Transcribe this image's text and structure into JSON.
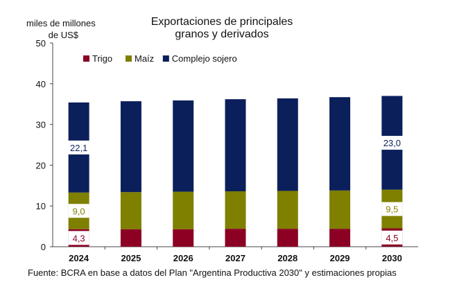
{
  "chart_data": {
    "type": "bar",
    "stacked": true,
    "title": [
      "Exportaciones de principales",
      "granos y derivados"
    ],
    "ylabel": [
      "miles de millones",
      "de US$"
    ],
    "xlabel": "",
    "ylim": [
      0,
      50
    ],
    "yticks": [
      0,
      10,
      20,
      30,
      40,
      50
    ],
    "grid": false,
    "legend": "top-left",
    "categories": [
      "2024",
      "2025",
      "2026",
      "2027",
      "2028",
      "2029",
      "2030"
    ],
    "series": [
      {
        "name": "Trigo",
        "color": "#8b0023",
        "values": [
          4.3,
          4.3,
          4.3,
          4.4,
          4.4,
          4.4,
          4.5
        ],
        "labels": [
          "4,3",
          "",
          "",
          "",
          "",
          "",
          "4,5"
        ]
      },
      {
        "name": "Maíz",
        "color": "#7f7f00",
        "values": [
          9.0,
          9.1,
          9.2,
          9.2,
          9.3,
          9.4,
          9.5
        ],
        "labels": [
          "9,0",
          "",
          "",
          "",
          "",
          "",
          "9,5"
        ]
      },
      {
        "name": "Complejo sojero",
        "color": "#0b1f5b",
        "values": [
          22.1,
          22.3,
          22.4,
          22.6,
          22.7,
          22.9,
          23.0
        ],
        "labels": [
          "22,1",
          "",
          "",
          "",
          "",
          "",
          "23,0"
        ]
      }
    ],
    "source": "Fuente: BCRA en base a datos del Plan \"Argentina Productiva 2030\" y estimaciones propias"
  }
}
